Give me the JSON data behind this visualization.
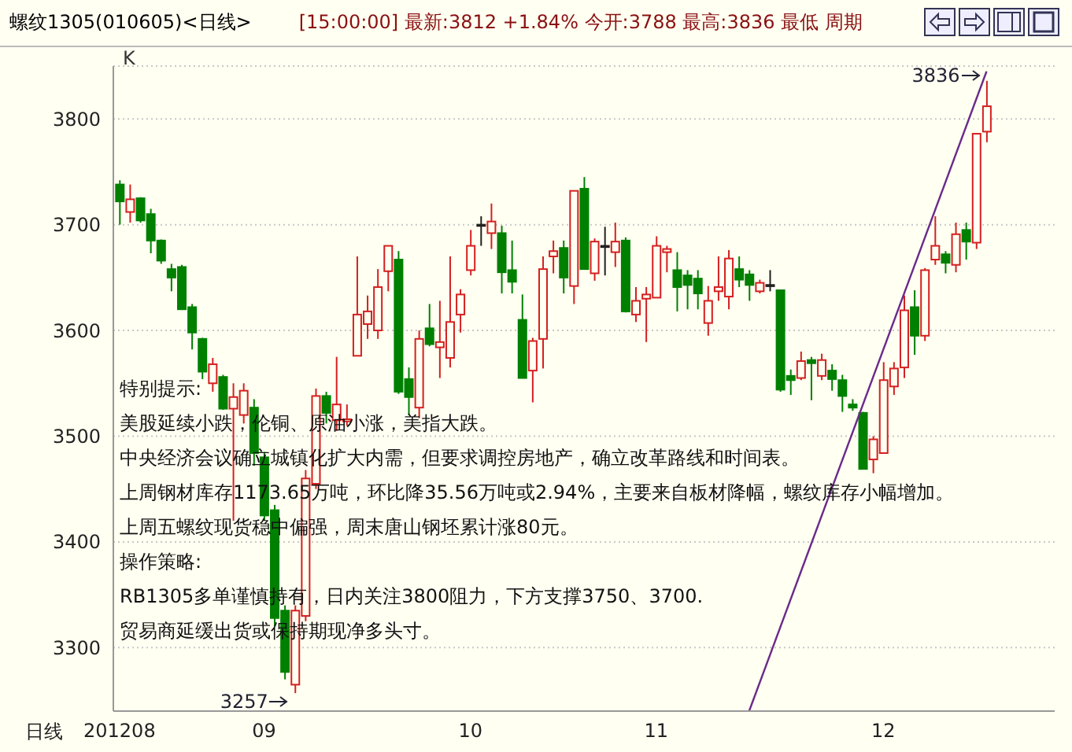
{
  "chart_data": {
    "type": "candlestick",
    "title": "螺纹1305(010605)<日线>",
    "subtitle": "[15:00:00] 最新:3812 +1.84% 今开:3788 最高:3836 最低 周期",
    "xlabel": "日线",
    "ylabel": "K",
    "categories": [
      "201208",
      null,
      null,
      null,
      null,
      null,
      null,
      null,
      null,
      null,
      null,
      null,
      null,
      null,
      "09",
      null,
      null,
      null,
      null,
      null,
      null,
      null,
      null,
      null,
      null,
      null,
      null,
      null,
      null,
      null,
      null,
      null,
      null,
      null,
      "10",
      null,
      null,
      null,
      null,
      null,
      null,
      null,
      null,
      null,
      null,
      null,
      null,
      null,
      null,
      null,
      null,
      null,
      "11",
      null,
      null,
      null,
      null,
      null,
      null,
      null,
      null,
      null,
      null,
      null,
      null,
      null,
      null,
      null,
      null,
      null,
      null,
      null,
      null,
      null,
      "12",
      null,
      null,
      null,
      null,
      null,
      null,
      null,
      null,
      null,
      null
    ],
    "ohlc": [
      [
        3738,
        3742,
        3700,
        3722
      ],
      [
        3712,
        3738,
        3702,
        3724
      ],
      [
        3725,
        3726,
        3702,
        3704
      ],
      [
        3710,
        3715,
        3673,
        3685
      ],
      [
        3685,
        3686,
        3663,
        3666
      ],
      [
        3658,
        3663,
        3637,
        3650
      ],
      [
        3660,
        3662,
        3620,
        3620
      ],
      [
        3622,
        3625,
        3582,
        3598
      ],
      [
        3592,
        3593,
        3554,
        3561
      ],
      [
        3550,
        3574,
        3542,
        3568
      ],
      [
        3556,
        3558,
        3525,
        3526
      ],
      [
        3526,
        3550,
        3420,
        3537
      ],
      [
        3520,
        3550,
        3512,
        3543
      ],
      [
        3527,
        3535,
        3472,
        3484
      ],
      [
        3480,
        3485,
        3420,
        3425
      ],
      [
        3430,
        3435,
        3320,
        3328
      ],
      [
        3335,
        3340,
        3270,
        3277
      ],
      [
        3265,
        3340,
        3257,
        3335
      ],
      [
        3330,
        3468,
        3325,
        3460
      ],
      [
        3455,
        3545,
        3450,
        3538
      ],
      [
        3538,
        3542,
        3512,
        3522
      ],
      [
        3515,
        3575,
        3505,
        3530
      ],
      [
        3514,
        3530,
        3510,
        3516
      ],
      [
        3576,
        3670,
        3576,
        3615
      ],
      [
        3606,
        3633,
        3592,
        3618
      ],
      [
        3600,
        3658,
        3592,
        3641
      ],
      [
        3656,
        3680,
        3637,
        3680
      ],
      [
        3667,
        3675,
        3540,
        3542
      ],
      [
        3554,
        3565,
        3520,
        3537
      ],
      [
        3527,
        3600,
        3517,
        3592
      ],
      [
        3602,
        3625,
        3585,
        3587
      ],
      [
        3584,
        3628,
        3555,
        3589
      ],
      [
        3574,
        3670,
        3565,
        3608
      ],
      [
        3615,
        3639,
        3598,
        3634
      ],
      [
        3657,
        3695,
        3652,
        3680
      ],
      [
        3700,
        3708,
        3680,
        3700
      ],
      [
        3692,
        3720,
        3677,
        3703
      ],
      [
        3692,
        3699,
        3635,
        3655
      ],
      [
        3657,
        3685,
        3635,
        3646
      ],
      [
        3610,
        3634,
        3555,
        3555
      ],
      [
        3562,
        3593,
        3532,
        3590
      ],
      [
        3592,
        3670,
        3564,
        3658
      ],
      [
        3670,
        3685,
        3654,
        3675
      ],
      [
        3678,
        3685,
        3635,
        3650
      ],
      [
        3642,
        3732,
        3625,
        3732
      ],
      [
        3734,
        3745,
        3658,
        3658
      ],
      [
        3654,
        3687,
        3647,
        3684
      ],
      [
        3680,
        3698,
        3652,
        3680
      ],
      [
        3674,
        3702,
        3660,
        3684
      ],
      [
        3685,
        3688,
        3617,
        3618
      ],
      [
        3615,
        3641,
        3608,
        3628
      ],
      [
        3630,
        3641,
        3589,
        3634
      ],
      [
        3631,
        3689,
        3631,
        3680
      ],
      [
        3674,
        3680,
        3655,
        3677
      ],
      [
        3657,
        3674,
        3618,
        3641
      ],
      [
        3652,
        3657,
        3620,
        3643
      ],
      [
        3649,
        3657,
        3620,
        3635
      ],
      [
        3607,
        3642,
        3595,
        3628
      ],
      [
        3637,
        3670,
        3628,
        3641
      ],
      [
        3632,
        3676,
        3620,
        3668
      ],
      [
        3658,
        3670,
        3641,
        3648
      ],
      [
        3653,
        3657,
        3628,
        3643
      ],
      [
        3637,
        3648,
        3635,
        3645
      ],
      [
        3643,
        3657,
        3637,
        3643
      ],
      [
        3638,
        3638,
        3542,
        3544
      ],
      [
        3557,
        3563,
        3539,
        3553
      ],
      [
        3555,
        3580,
        3553,
        3571
      ],
      [
        3572,
        3575,
        3534,
        3569
      ],
      [
        3557,
        3578,
        3553,
        3572
      ],
      [
        3562,
        3568,
        3543,
        3554
      ],
      [
        3553,
        3558,
        3523,
        3538
      ],
      [
        3530,
        3535,
        3524,
        3527
      ],
      [
        3522,
        3523,
        3469,
        3469
      ],
      [
        3478,
        3500,
        3465,
        3497
      ],
      [
        3484,
        3570,
        3484,
        3553
      ],
      [
        3547,
        3570,
        3539,
        3564
      ],
      [
        3565,
        3633,
        3555,
        3619
      ],
      [
        3622,
        3638,
        3577,
        3595
      ],
      [
        3595,
        3659,
        3590,
        3657
      ],
      [
        3667,
        3708,
        3662,
        3680
      ],
      [
        3672,
        3675,
        3654,
        3664
      ],
      [
        3662,
        3702,
        3655,
        3691
      ],
      [
        3695,
        3702,
        3667,
        3684
      ],
      [
        3683,
        3786,
        3677,
        3786
      ],
      [
        3788,
        3836,
        3778,
        3812
      ]
    ],
    "colors": [
      "#008000",
      "#d42020",
      "#008000",
      "#008000",
      "#008000",
      "#008000",
      "#008000",
      "#008000",
      "#008000",
      "#d42020",
      "#008000",
      "#d42020",
      "#d42020",
      "#008000",
      "#008000",
      "#008000",
      "#008000",
      "#d42020",
      "#d42020",
      "#d42020",
      "#008000",
      "#d42020",
      "#d42020",
      "#d42020",
      "#d42020",
      "#d42020",
      "#d42020",
      "#008000",
      "#008000",
      "#d42020",
      "#008000",
      "#d42020",
      "#d42020",
      "#d42020",
      "#d42020",
      "#202020",
      "#d42020",
      "#008000",
      "#008000",
      "#008000",
      "#d42020",
      "#d42020",
      "#d42020",
      "#008000",
      "#d42020",
      "#008000",
      "#d42020",
      "#202020",
      "#d42020",
      "#008000",
      "#d42020",
      "#d42020",
      "#d42020",
      "#d42020",
      "#008000",
      "#008000",
      "#008000",
      "#d42020",
      "#d42020",
      "#d42020",
      "#008000",
      "#008000",
      "#d42020",
      "#202020",
      "#008000",
      "#008000",
      "#d42020",
      "#008000",
      "#d42020",
      "#008000",
      "#008000",
      "#008000",
      "#008000",
      "#d42020",
      "#d42020",
      "#d42020",
      "#d42020",
      "#008000",
      "#d42020",
      "#d42020",
      "#008000",
      "#d42020",
      "#008000",
      "#d42020",
      "#d42020"
    ],
    "series": [
      {
        "type": "line",
        "values": [
          null,
          null,
          null,
          null,
          null,
          null,
          null,
          null,
          null,
          null,
          null,
          null,
          null,
          null,
          null,
          null,
          null,
          null,
          null,
          null,
          null,
          null,
          null,
          null,
          null,
          null,
          null,
          null,
          null,
          null,
          null,
          null,
          null,
          null,
          null,
          null,
          null,
          null,
          null,
          null,
          null,
          null,
          null,
          null,
          null,
          null,
          null,
          null,
          null,
          null,
          null,
          null,
          null,
          null,
          null,
          null,
          null,
          null,
          null,
          null,
          null,
          3240,
          null,
          null,
          null,
          null,
          null,
          null,
          null,
          null,
          null,
          null,
          null,
          null,
          null,
          null,
          null,
          null,
          null,
          null,
          null,
          null,
          null,
          null,
          3845
        ],
        "color": "#6a2a8a"
      }
    ],
    "ylim": [
      3240,
      3850
    ],
    "yticks": [
      3300,
      3400,
      3500,
      3600,
      3700,
      3800
    ],
    "grid": "y",
    "legend": false,
    "annotations": [
      "3836",
      "3257",
      "特别提示:",
      "美股延续小跌，伦铜、原油小涨，美指大跌。",
      "中央经济会议确立城镇化扩大内需，但要求调控房地产，确立改革路线和时间表。",
      "上周钢材库存1173.65万吨，环比降35.56万吨或2.94%，主要来自板材降幅，螺纹库存小幅增加。",
      "上周五螺纹现货稳中偏强，周末唐山钢坯累计涨80元。",
      "操作策略:",
      "RB1305多单谨慎持有，日内关注3800阻力，下方支撑3750、3700.",
      "贸易商延缓出货或保持期现净多头寸。"
    ]
  }
}
